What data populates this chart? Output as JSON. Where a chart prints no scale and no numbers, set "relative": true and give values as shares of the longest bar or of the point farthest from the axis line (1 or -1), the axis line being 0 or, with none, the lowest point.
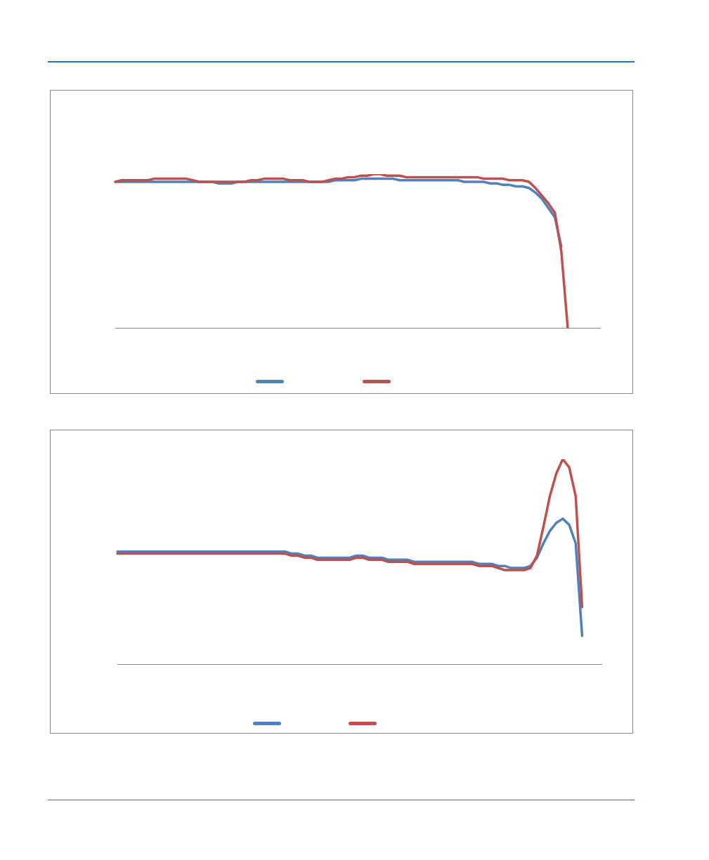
{
  "chart_data": [
    {
      "type": "line",
      "relative": true,
      "marker": "none",
      "categories": [
        null,
        null,
        null,
        null,
        null,
        null,
        null,
        null,
        null,
        null,
        null,
        null,
        null,
        null,
        null,
        null,
        null,
        null,
        null,
        null,
        null,
        null,
        null,
        null,
        null,
        null,
        null,
        null,
        null,
        null,
        null,
        null,
        null,
        null,
        null,
        null,
        null,
        null,
        null,
        null,
        null,
        null,
        null,
        null,
        null,
        null,
        null,
        null,
        null,
        null,
        null,
        null,
        null,
        null,
        null,
        null,
        null,
        null,
        null,
        null,
        null,
        null,
        null,
        null,
        null,
        null,
        null,
        null,
        null,
        null,
        null,
        null,
        null,
        null,
        null,
        null
      ],
      "series": [
        {
          "color": "#4f81bd",
          "values": [
            0.95,
            0.95,
            0.95,
            0.95,
            0.95,
            0.95,
            0.95,
            0.95,
            0.95,
            0.95,
            0.95,
            0.95,
            0.95,
            0.95,
            0.95,
            0.95,
            0.94,
            0.94,
            0.94,
            0.95,
            0.95,
            0.95,
            0.95,
            0.95,
            0.95,
            0.95,
            0.95,
            0.95,
            0.95,
            0.95,
            0.95,
            0.95,
            0.95,
            0.95,
            0.96,
            0.96,
            0.96,
            0.96,
            0.97,
            0.97,
            0.97,
            0.97,
            0.97,
            0.97,
            0.96,
            0.96,
            0.96,
            0.96,
            0.96,
            0.96,
            0.96,
            0.96,
            0.96,
            0.96,
            0.95,
            0.95,
            0.95,
            0.95,
            0.94,
            0.94,
            0.93,
            0.93,
            0.92,
            0.92,
            0.91,
            0.88,
            0.84,
            0.78,
            0.72,
            0.53,
            null,
            null,
            null,
            null,
            null,
            null
          ]
        },
        {
          "color": "#c0504d",
          "values": [
            0.95,
            0.96,
            0.96,
            0.96,
            0.96,
            0.96,
            0.97,
            0.97,
            0.97,
            0.97,
            0.97,
            0.97,
            0.96,
            0.95,
            0.95,
            0.95,
            0.95,
            0.95,
            0.95,
            0.95,
            0.95,
            0.96,
            0.96,
            0.97,
            0.97,
            0.97,
            0.97,
            0.96,
            0.96,
            0.96,
            0.95,
            0.95,
            0.95,
            0.96,
            0.97,
            0.97,
            0.98,
            0.98,
            0.99,
            0.99,
            1,
            1,
            0.99,
            0.99,
            0.99,
            0.98,
            0.98,
            0.98,
            0.98,
            0.98,
            0.98,
            0.98,
            0.98,
            0.98,
            0.98,
            0.98,
            0.98,
            0.97,
            0.97,
            0.97,
            0.97,
            0.96,
            0.96,
            0.96,
            0.95,
            0.91,
            0.86,
            0.81,
            0.75,
            0.5,
            0,
            null,
            null,
            null,
            null,
            null
          ]
        }
      ]
    },
    {
      "type": "line",
      "relative": true,
      "marker": "none",
      "categories": [
        null,
        null,
        null,
        null,
        null,
        null,
        null,
        null,
        null,
        null,
        null,
        null,
        null,
        null,
        null,
        null,
        null,
        null,
        null,
        null,
        null,
        null,
        null,
        null,
        null,
        null,
        null,
        null,
        null,
        null,
        null,
        null,
        null,
        null,
        null,
        null,
        null,
        null,
        null,
        null,
        null,
        null,
        null,
        null,
        null,
        null,
        null,
        null,
        null,
        null,
        null,
        null,
        null,
        null,
        null,
        null,
        null,
        null,
        null,
        null,
        null,
        null,
        null,
        null,
        null,
        null,
        null,
        null,
        null,
        null,
        null,
        null,
        null,
        null,
        null,
        null
      ],
      "series": [
        {
          "color": "#4f81bd",
          "values": [
            0.55,
            0.55,
            0.55,
            0.55,
            0.55,
            0.55,
            0.55,
            0.55,
            0.55,
            0.55,
            0.55,
            0.55,
            0.55,
            0.55,
            0.55,
            0.55,
            0.55,
            0.55,
            0.55,
            0.55,
            0.55,
            0.55,
            0.55,
            0.55,
            0.55,
            0.55,
            0.55,
            0.54,
            0.54,
            0.53,
            0.53,
            0.52,
            0.52,
            0.52,
            0.52,
            0.52,
            0.52,
            0.53,
            0.53,
            0.52,
            0.52,
            0.52,
            0.51,
            0.51,
            0.51,
            0.51,
            0.5,
            0.5,
            0.5,
            0.5,
            0.5,
            0.5,
            0.5,
            0.5,
            0.5,
            0.5,
            0.49,
            0.49,
            0.49,
            0.48,
            0.48,
            0.47,
            0.47,
            0.47,
            0.48,
            0.52,
            0.59,
            0.65,
            0.69,
            0.71,
            0.68,
            0.59,
            0.14,
            null,
            null,
            null
          ]
        },
        {
          "color": "#c0504d",
          "values": [
            0.54,
            0.54,
            0.54,
            0.54,
            0.54,
            0.54,
            0.54,
            0.54,
            0.54,
            0.54,
            0.54,
            0.54,
            0.54,
            0.54,
            0.54,
            0.54,
            0.54,
            0.54,
            0.54,
            0.54,
            0.54,
            0.54,
            0.54,
            0.54,
            0.54,
            0.54,
            0.54,
            0.53,
            0.53,
            0.52,
            0.52,
            0.51,
            0.51,
            0.51,
            0.51,
            0.51,
            0.51,
            0.52,
            0.52,
            0.51,
            0.51,
            0.51,
            0.5,
            0.5,
            0.5,
            0.5,
            0.49,
            0.49,
            0.49,
            0.49,
            0.49,
            0.49,
            0.49,
            0.49,
            0.49,
            0.49,
            0.48,
            0.48,
            0.48,
            0.47,
            0.46,
            0.46,
            0.46,
            0.46,
            0.47,
            0.53,
            0.67,
            0.82,
            0.93,
            1,
            0.96,
            0.82,
            0.28,
            null,
            null,
            null
          ]
        }
      ]
    }
  ]
}
